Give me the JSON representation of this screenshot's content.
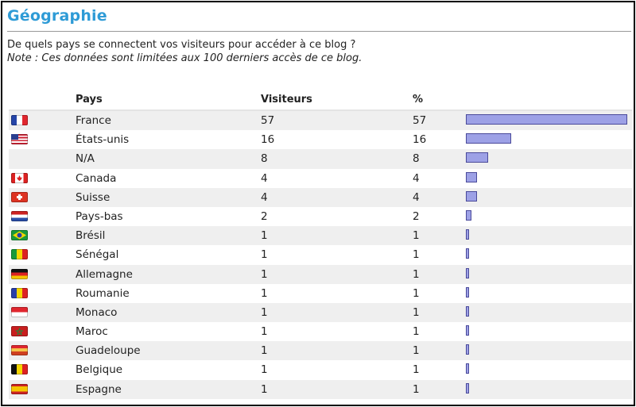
{
  "title": "Géographie",
  "intro": {
    "question": "De quels pays se connectent vos visiteurs pour accéder à ce blog ?",
    "note": "Note : Ces données sont limitées aux 100 derniers accès de ce blog."
  },
  "columns": {
    "country": "Pays",
    "visitors": "Visiteurs",
    "percent": "%"
  },
  "rows": [
    {
      "country": "France",
      "visitors": "57",
      "percent": "57",
      "share": 57,
      "flag": "france-flag-icon"
    },
    {
      "country": "États-unis",
      "visitors": "16",
      "percent": "16",
      "share": 16,
      "flag": "usa-flag-icon"
    },
    {
      "country": "N/A",
      "visitors": "8",
      "percent": "8",
      "share": 8,
      "flag": ""
    },
    {
      "country": "Canada",
      "visitors": "4",
      "percent": "4",
      "share": 4,
      "flag": "canada-flag-icon"
    },
    {
      "country": "Suisse",
      "visitors": "4",
      "percent": "4",
      "share": 4,
      "flag": "switzerland-flag-icon"
    },
    {
      "country": "Pays-bas",
      "visitors": "2",
      "percent": "2",
      "share": 2,
      "flag": "netherlands-flag-icon"
    },
    {
      "country": "Brésil",
      "visitors": "1",
      "percent": "1",
      "share": 1,
      "flag": "brazil-flag-icon"
    },
    {
      "country": "Sénégal",
      "visitors": "1",
      "percent": "1",
      "share": 1,
      "flag": "senegal-flag-icon"
    },
    {
      "country": "Allemagne",
      "visitors": "1",
      "percent": "1",
      "share": 1,
      "flag": "germany-flag-icon"
    },
    {
      "country": "Roumanie",
      "visitors": "1",
      "percent": "1",
      "share": 1,
      "flag": "romania-flag-icon"
    },
    {
      "country": "Monaco",
      "visitors": "1",
      "percent": "1",
      "share": 1,
      "flag": "monaco-flag-icon"
    },
    {
      "country": "Maroc",
      "visitors": "1",
      "percent": "1",
      "share": 1,
      "flag": "morocco-flag-icon"
    },
    {
      "country": "Guadeloupe",
      "visitors": "1",
      "percent": "1",
      "share": 1,
      "flag": "guadeloupe-flag-icon"
    },
    {
      "country": "Belgique",
      "visitors": "1",
      "percent": "1",
      "share": 1,
      "flag": "belgium-flag-icon"
    },
    {
      "country": "Espagne",
      "visitors": "1",
      "percent": "1",
      "share": 1,
      "flag": "spain-flag-icon"
    }
  ],
  "colors": {
    "title": "#2e9bd6",
    "bar_fill": "#9da1e6",
    "bar_border": "#4a4a9a",
    "row_alt": "#efefef"
  }
}
